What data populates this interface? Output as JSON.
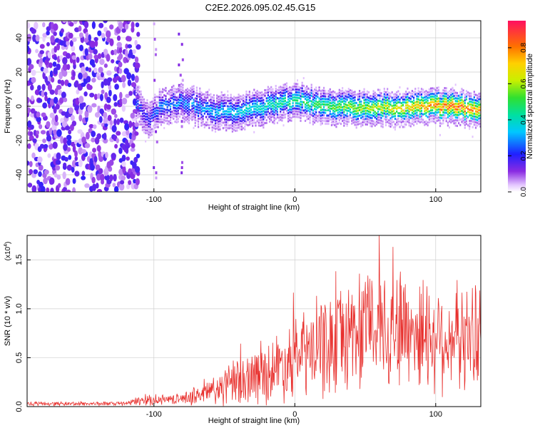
{
  "title": "C2E2.2026.095.02.45.G15",
  "colors": {
    "snr_line": "#e8312e",
    "grid": "#cfcfcf",
    "axis": "#000000",
    "background": "#ffffff"
  },
  "chart_data": [
    {
      "type": "heatmap",
      "title": "C2E2.2026.095.02.45.G15",
      "xlabel": "Height of straight line (km)",
      "ylabel": "Frequency (Hz)",
      "xlim": [
        -190,
        132
      ],
      "ylim": [
        -50,
        50
      ],
      "xticks": [
        -100,
        0,
        100
      ],
      "yticks": [
        -40,
        -20,
        0,
        20,
        40
      ],
      "grid": true,
      "colorbar": {
        "label": "Normalized spectral amplitude",
        "range": [
          0,
          0.95
        ],
        "ticks": [
          0.0,
          0.2,
          0.4,
          0.6,
          0.8
        ],
        "colormap": "rainbow (white/purple → blue → cyan → green → yellow → red)"
      },
      "features": {
        "noise_region_x": [
          -190,
          -113
        ],
        "noise_amplitude": 0.15,
        "noise_streaks_x": [
          -100,
          -82
        ],
        "signal_start_x": -113,
        "signal_center_frequency_hz": 0,
        "signal_track_points": [
          {
            "x": -113,
            "freq": 3,
            "amp": 0.25
          },
          {
            "x": -106,
            "freq": -8,
            "amp": 0.2
          },
          {
            "x": -95,
            "freq": 0,
            "amp": 0.3
          },
          {
            "x": -80,
            "freq": 3,
            "amp": 0.3
          },
          {
            "x": -60,
            "freq": -3,
            "amp": 0.35
          },
          {
            "x": -40,
            "freq": -3,
            "amp": 0.4
          },
          {
            "x": -20,
            "freq": 0,
            "amp": 0.45
          },
          {
            "x": 0,
            "freq": 4,
            "amp": 0.5
          },
          {
            "x": 20,
            "freq": 0,
            "amp": 0.55
          },
          {
            "x": 50,
            "freq": -1,
            "amp": 0.65
          },
          {
            "x": 80,
            "freq": 0,
            "amp": 0.75
          },
          {
            "x": 100,
            "freq": 0,
            "amp": 0.85
          },
          {
            "x": 115,
            "freq": 0,
            "amp": 0.9
          },
          {
            "x": 132,
            "freq": -2,
            "amp": 0.8
          }
        ],
        "signal_band_halfwidth_hz": 6
      }
    },
    {
      "type": "line",
      "xlabel": "Height of straight line (km)",
      "ylabel": "SNR (10 * v/v)",
      "scale_label": "(x10",
      "scale_exp": "4",
      "scale_close": ")",
      "xlim": [
        -190,
        132
      ],
      "ylim": [
        0,
        1.75
      ],
      "xticks": [
        -100,
        0,
        100
      ],
      "yticks": [
        0.0,
        0.5,
        1.0,
        1.5
      ],
      "ytick_labels": [
        "0.0",
        "0.5",
        "1.0",
        "1.5"
      ],
      "grid": true,
      "series": [
        {
          "name": "SNR",
          "envelope": [
            {
              "x": -190,
              "mean": 0.03,
              "spread": 0.02
            },
            {
              "x": -120,
              "mean": 0.03,
              "spread": 0.02
            },
            {
              "x": -110,
              "mean": 0.06,
              "spread": 0.05
            },
            {
              "x": -80,
              "mean": 0.08,
              "spread": 0.05
            },
            {
              "x": -60,
              "mean": 0.15,
              "spread": 0.15
            },
            {
              "x": -40,
              "mean": 0.25,
              "spread": 0.25
            },
            {
              "x": -20,
              "mean": 0.35,
              "spread": 0.3
            },
            {
              "x": 0,
              "mean": 0.5,
              "spread": 0.4
            },
            {
              "x": 20,
              "mean": 0.6,
              "spread": 0.5
            },
            {
              "x": 40,
              "mean": 0.75,
              "spread": 0.55
            },
            {
              "x": 60,
              "mean": 0.85,
              "spread": 0.6
            },
            {
              "x": 80,
              "mean": 0.8,
              "spread": 0.6
            },
            {
              "x": 100,
              "mean": 0.72,
              "spread": 0.55
            },
            {
              "x": 120,
              "mean": 0.7,
              "spread": 0.5
            },
            {
              "x": 132,
              "mean": 0.75,
              "spread": 0.5
            }
          ],
          "peak": {
            "x": 60,
            "value": 1.75
          }
        }
      ]
    }
  ]
}
